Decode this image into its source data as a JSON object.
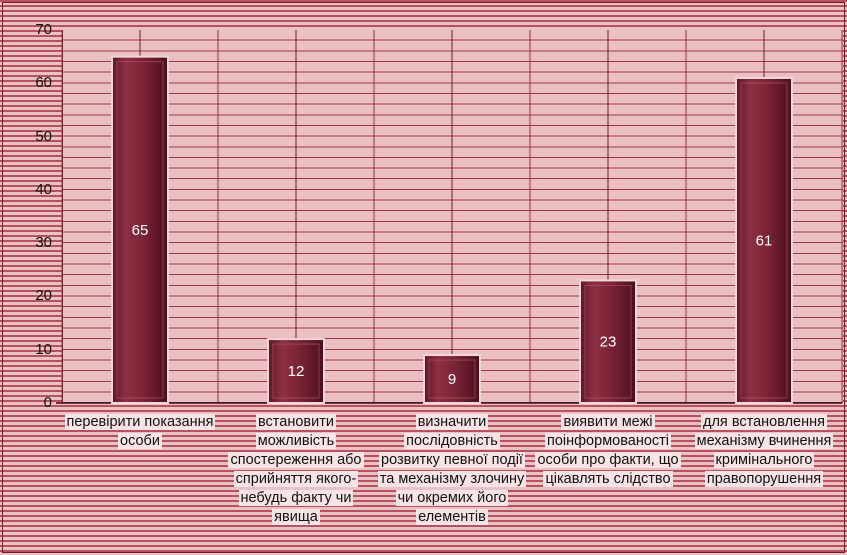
{
  "chart_data": {
    "type": "bar",
    "categories": [
      "перевірити показання особи",
      "встановити можливість спостереження або сприйняття якого-небудь факту чи явища",
      "визначити послідовність розвитку певної події та механізму злочину чи окремих його елементів",
      "виявити межі поінформованості особи про факти, що цікавлять слідство",
      "для встановлення механізму вчинення кримінального правопорушення"
    ],
    "values": [
      65,
      12,
      9,
      23,
      61
    ],
    "data_labels": [
      "65",
      "12",
      "9",
      "23",
      "61"
    ],
    "ylim": [
      0,
      70
    ],
    "yticks": [
      "0",
      "10",
      "20",
      "30",
      "40",
      "50",
      "60",
      "70"
    ],
    "grid": true,
    "bar_color": "#8e2f42",
    "background_color": "#b8505e"
  }
}
